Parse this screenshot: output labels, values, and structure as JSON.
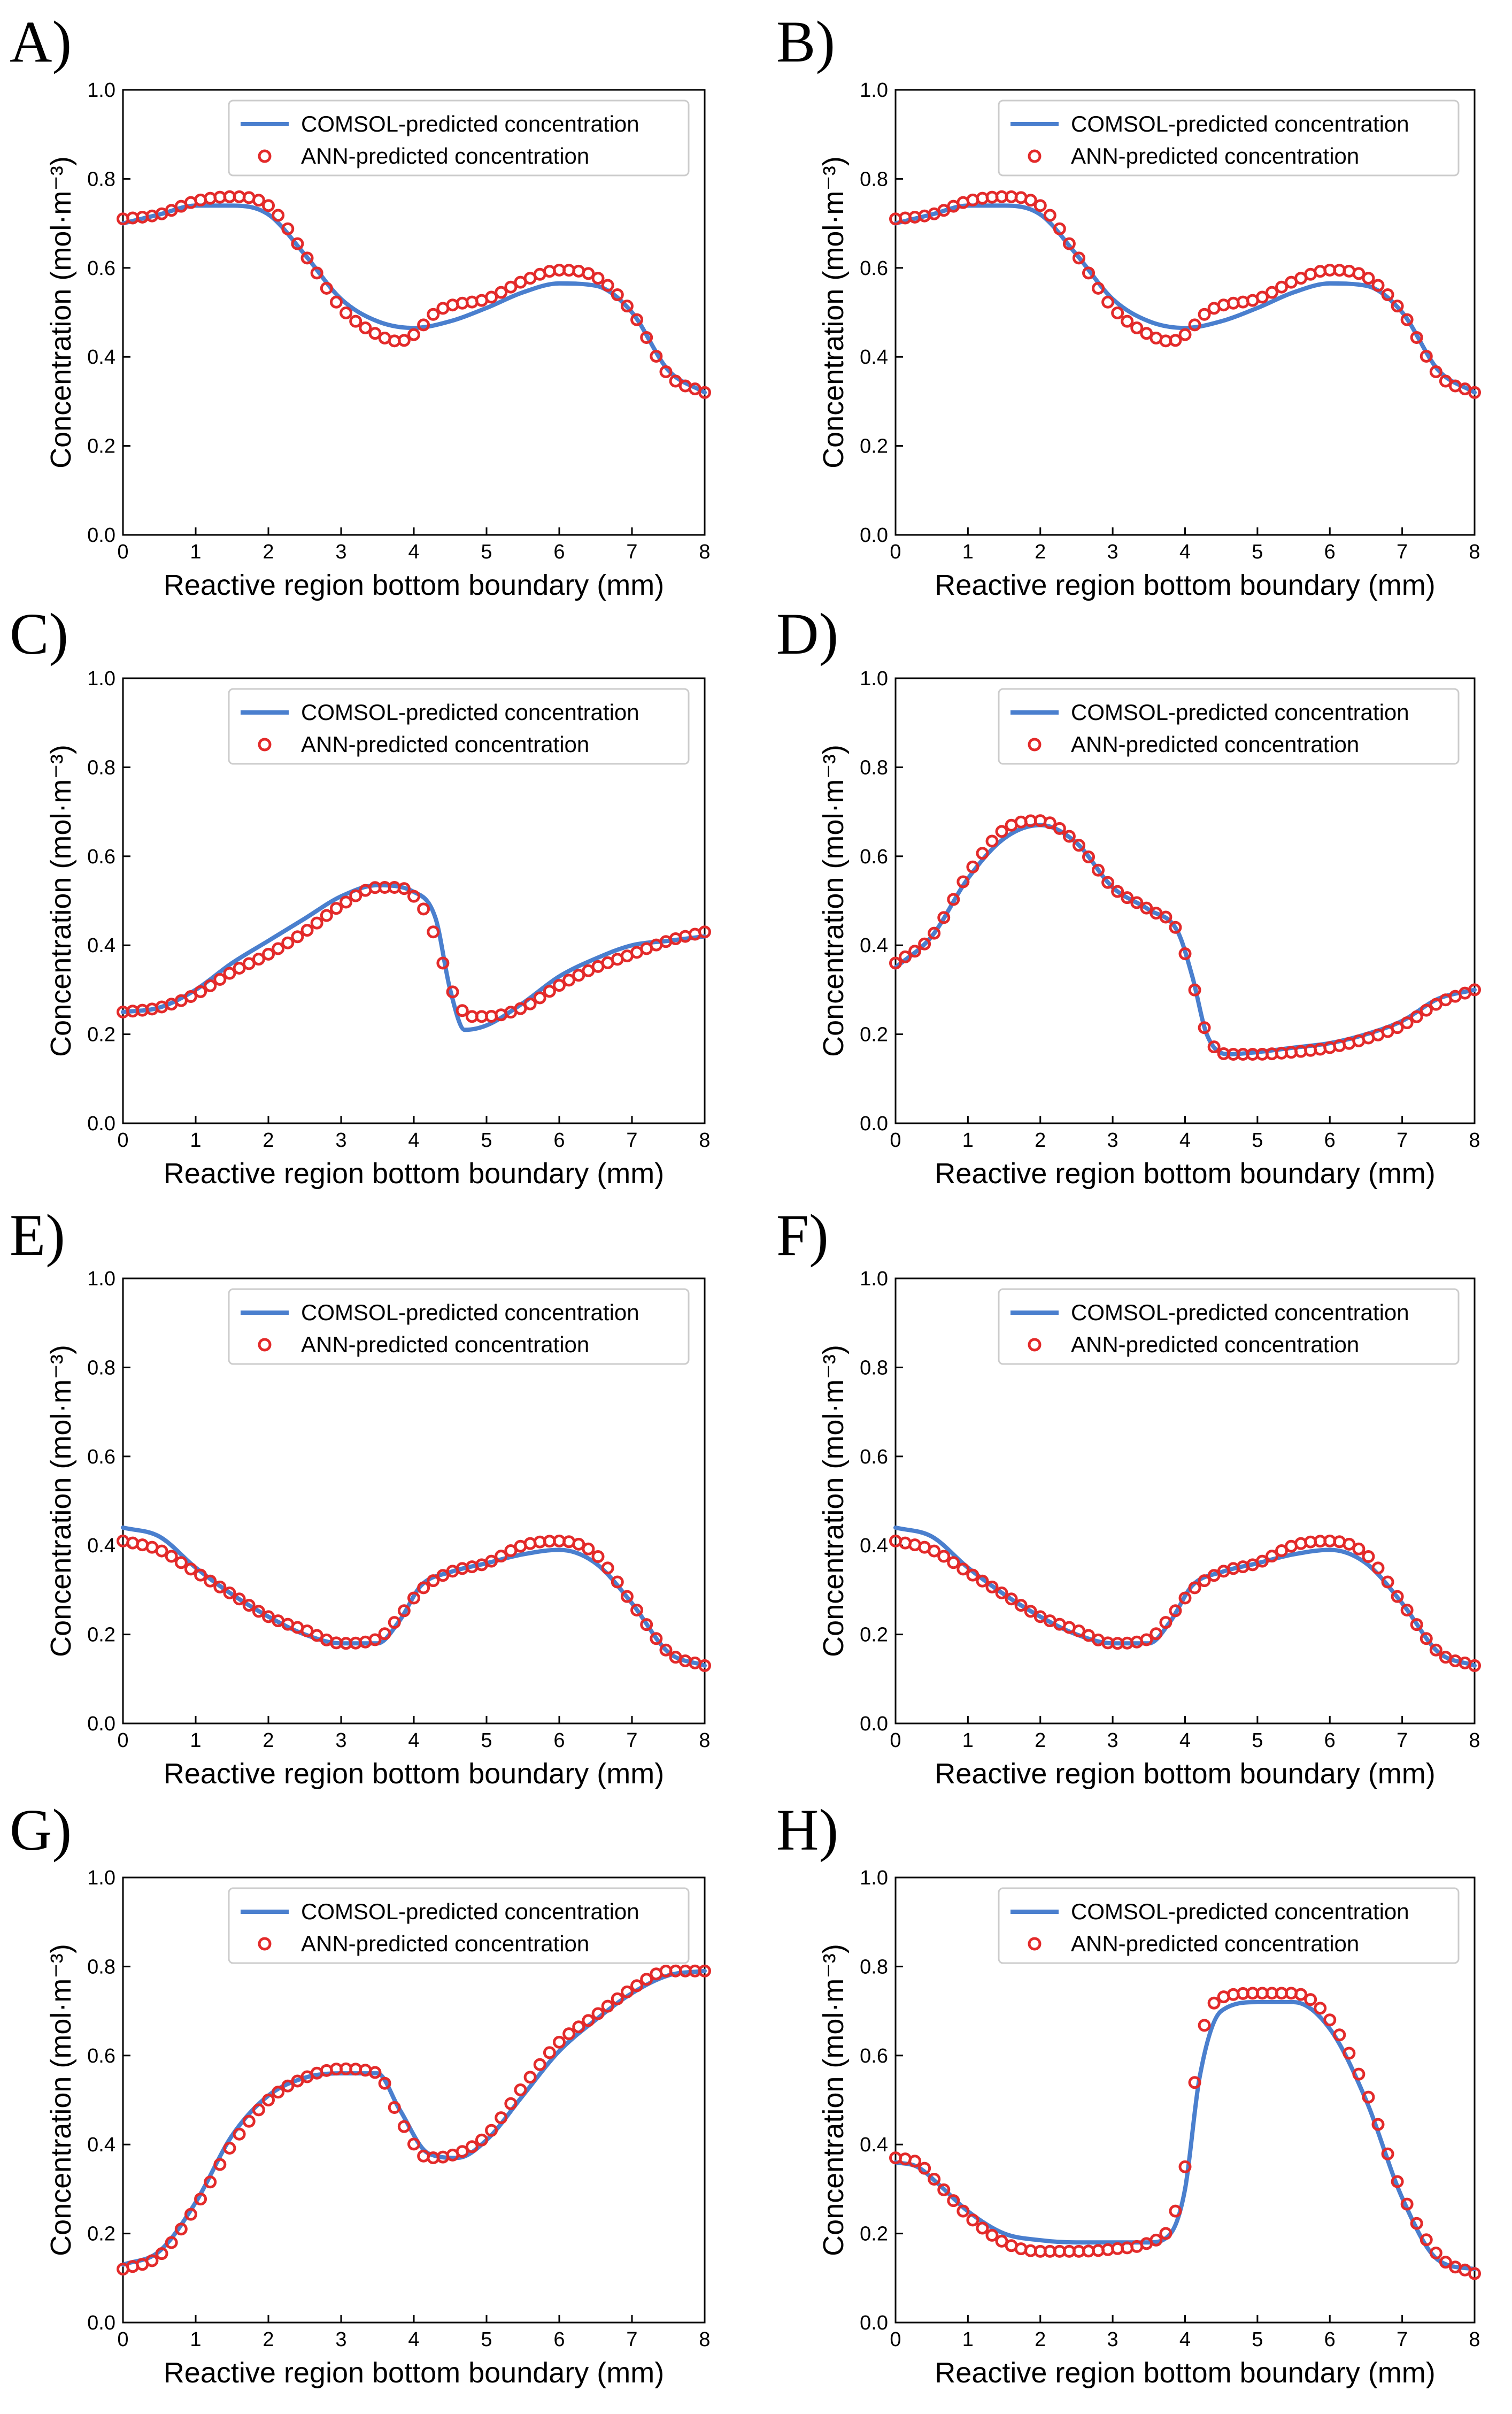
{
  "style": {
    "comsol_color": "#4A7FCE",
    "ann_color": "#E32A2A",
    "axis_color": "#000000",
    "legend_border": "#CCCCCC"
  },
  "chart_data": [
    {
      "panel": "A)",
      "type": "line",
      "xlabel": "Reactive region bottom boundary (mm)",
      "ylabel": "Concentration (mol·m⁻³)",
      "xlim": [
        0,
        8
      ],
      "ylim": [
        0,
        1
      ],
      "xticks": [
        "0",
        "1",
        "2",
        "3",
        "4",
        "5",
        "6",
        "7",
        "8"
      ],
      "yticks": [
        "0.0",
        "0.2",
        "0.4",
        "0.6",
        "0.8",
        "1.0"
      ],
      "legend": "top-right",
      "series": [
        {
          "name": "COMSOL-predicted concentration",
          "kind": "line",
          "x": [
            0,
            0.5,
            1.0,
            1.5,
            2.0,
            2.5,
            3.0,
            3.5,
            4.0,
            4.5,
            5.0,
            5.5,
            6.0,
            6.5,
            7.0,
            7.5,
            8.0
          ],
          "y": [
            0.7,
            0.72,
            0.74,
            0.74,
            0.72,
            0.63,
            0.53,
            0.48,
            0.465,
            0.48,
            0.51,
            0.545,
            0.565,
            0.56,
            0.5,
            0.37,
            0.32
          ]
        },
        {
          "name": "ANN-predicted concentration",
          "kind": "scatter",
          "x": [
            0,
            0.5,
            1.0,
            1.5,
            2.0,
            2.5,
            3.0,
            3.5,
            3.8,
            4.0,
            4.3,
            4.5,
            5.0,
            5.5,
            6.0,
            6.5,
            7.0,
            7.5,
            8.0
          ],
          "y": [
            0.71,
            0.72,
            0.75,
            0.76,
            0.74,
            0.63,
            0.51,
            0.45,
            0.435,
            0.45,
            0.5,
            0.515,
            0.53,
            0.57,
            0.595,
            0.58,
            0.5,
            0.36,
            0.32
          ]
        }
      ]
    },
    {
      "panel": "B)",
      "type": "line",
      "xlabel": "Reactive region bottom boundary (mm)",
      "ylabel": "Concentration (mol·m⁻³)",
      "xlim": [
        0,
        8
      ],
      "ylim": [
        0,
        1
      ],
      "xticks": [
        "0",
        "1",
        "2",
        "3",
        "4",
        "5",
        "6",
        "7",
        "8"
      ],
      "yticks": [
        "0.0",
        "0.2",
        "0.4",
        "0.6",
        "0.8",
        "1.0"
      ],
      "legend": "top-right",
      "series": [
        {
          "name": "COMSOL-predicted concentration",
          "kind": "line",
          "x": [
            0,
            0.5,
            1.0,
            1.5,
            2.0,
            2.5,
            3.0,
            3.5,
            4.0,
            4.5,
            5.0,
            5.5,
            6.0,
            6.5,
            7.0,
            7.5,
            8.0
          ],
          "y": [
            0.7,
            0.72,
            0.74,
            0.74,
            0.72,
            0.63,
            0.53,
            0.48,
            0.465,
            0.48,
            0.51,
            0.545,
            0.565,
            0.56,
            0.5,
            0.37,
            0.32
          ]
        },
        {
          "name": "ANN-predicted concentration",
          "kind": "scatter",
          "x": [
            0,
            0.5,
            1.0,
            1.5,
            2.0,
            2.5,
            3.0,
            3.5,
            3.8,
            4.0,
            4.3,
            4.5,
            5.0,
            5.5,
            6.0,
            6.5,
            7.0,
            7.5,
            8.0
          ],
          "y": [
            0.71,
            0.72,
            0.75,
            0.76,
            0.74,
            0.63,
            0.51,
            0.45,
            0.435,
            0.45,
            0.5,
            0.515,
            0.53,
            0.57,
            0.595,
            0.58,
            0.5,
            0.36,
            0.32
          ]
        }
      ]
    },
    {
      "panel": "C)",
      "type": "line",
      "xlabel": "Reactive region bottom boundary (mm)",
      "ylabel": "Concentration (mol·m⁻³)",
      "xlim": [
        0,
        8
      ],
      "ylim": [
        0,
        1
      ],
      "xticks": [
        "0",
        "1",
        "2",
        "3",
        "4",
        "5",
        "6",
        "7",
        "8"
      ],
      "yticks": [
        "0.0",
        "0.2",
        "0.4",
        "0.6",
        "0.8",
        "1.0"
      ],
      "legend": "top-right",
      "series": [
        {
          "name": "COMSOL-predicted concentration",
          "kind": "line",
          "x": [
            0,
            0.5,
            1.0,
            1.5,
            2.0,
            2.5,
            3.0,
            3.5,
            4.0,
            4.3,
            4.5,
            4.7,
            5.0,
            5.5,
            6.0,
            6.5,
            7.0,
            7.5,
            8.0
          ],
          "y": [
            0.25,
            0.26,
            0.3,
            0.36,
            0.41,
            0.46,
            0.51,
            0.535,
            0.52,
            0.46,
            0.3,
            0.21,
            0.22,
            0.27,
            0.33,
            0.37,
            0.4,
            0.41,
            0.42
          ]
        },
        {
          "name": "ANN-predicted concentration",
          "kind": "scatter",
          "x": [
            0,
            0.5,
            1.0,
            1.5,
            2.0,
            2.5,
            3.0,
            3.5,
            3.8,
            4.0,
            4.2,
            4.4,
            4.6,
            4.8,
            5.0,
            5.5,
            6.0,
            6.5,
            7.0,
            7.5,
            8.0
          ],
          "y": [
            0.25,
            0.26,
            0.29,
            0.34,
            0.38,
            0.43,
            0.49,
            0.53,
            0.53,
            0.51,
            0.46,
            0.36,
            0.27,
            0.24,
            0.24,
            0.26,
            0.31,
            0.35,
            0.38,
            0.41,
            0.43
          ]
        }
      ]
    },
    {
      "panel": "D)",
      "type": "line",
      "xlabel": "Reactive region bottom boundary (mm)",
      "ylabel": "Concentration (mol·m⁻³)",
      "xlim": [
        0,
        8
      ],
      "ylim": [
        0,
        1
      ],
      "xticks": [
        "0",
        "1",
        "2",
        "3",
        "4",
        "5",
        "6",
        "7",
        "8"
      ],
      "yticks": [
        "0.0",
        "0.2",
        "0.4",
        "0.6",
        "0.8",
        "1.0"
      ],
      "legend": "top-right",
      "series": [
        {
          "name": "COMSOL-predicted concentration",
          "kind": "line",
          "x": [
            0,
            0.5,
            1.0,
            1.5,
            2.0,
            2.5,
            3.0,
            3.5,
            3.9,
            4.1,
            4.3,
            4.6,
            5.0,
            5.5,
            6.0,
            6.5,
            7.0,
            7.5,
            8.0
          ],
          "y": [
            0.35,
            0.42,
            0.55,
            0.64,
            0.67,
            0.63,
            0.53,
            0.48,
            0.43,
            0.33,
            0.2,
            0.155,
            0.16,
            0.17,
            0.18,
            0.2,
            0.23,
            0.28,
            0.3
          ]
        },
        {
          "name": "ANN-predicted concentration",
          "kind": "scatter",
          "x": [
            0,
            0.5,
            1.0,
            1.5,
            2.0,
            2.5,
            3.0,
            3.5,
            3.9,
            4.1,
            4.3,
            4.6,
            5.0,
            5.5,
            6.0,
            6.5,
            7.0,
            7.5,
            8.0
          ],
          "y": [
            0.36,
            0.42,
            0.56,
            0.66,
            0.68,
            0.63,
            0.53,
            0.48,
            0.43,
            0.32,
            0.2,
            0.155,
            0.155,
            0.16,
            0.17,
            0.19,
            0.22,
            0.27,
            0.3
          ]
        }
      ]
    },
    {
      "panel": "E)",
      "type": "line",
      "xlabel": "Reactive region bottom boundary (mm)",
      "ylabel": "Concentration (mol·m⁻³)",
      "xlim": [
        0,
        8
      ],
      "ylim": [
        0,
        1
      ],
      "xticks": [
        "0",
        "1",
        "2",
        "3",
        "4",
        "5",
        "6",
        "7",
        "8"
      ],
      "yticks": [
        "0.0",
        "0.2",
        "0.4",
        "0.6",
        "0.8",
        "1.0"
      ],
      "legend": "top-right",
      "series": [
        {
          "name": "COMSOL-predicted concentration",
          "kind": "line",
          "x": [
            0,
            0.5,
            1.0,
            1.5,
            2.0,
            2.5,
            3.0,
            3.5,
            3.8,
            4.1,
            4.5,
            5.0,
            5.5,
            6.0,
            6.5,
            7.0,
            7.5,
            8.0
          ],
          "y": [
            0.44,
            0.42,
            0.35,
            0.29,
            0.24,
            0.2,
            0.18,
            0.18,
            0.23,
            0.31,
            0.34,
            0.36,
            0.38,
            0.39,
            0.36,
            0.27,
            0.16,
            0.13
          ]
        },
        {
          "name": "ANN-predicted concentration",
          "kind": "scatter",
          "x": [
            0,
            0.5,
            1.0,
            1.5,
            2.0,
            2.5,
            3.0,
            3.5,
            3.8,
            4.1,
            4.5,
            5.0,
            5.5,
            6.0,
            6.5,
            7.0,
            7.5,
            8.0
          ],
          "y": [
            0.41,
            0.39,
            0.34,
            0.29,
            0.24,
            0.21,
            0.18,
            0.19,
            0.24,
            0.3,
            0.34,
            0.36,
            0.4,
            0.41,
            0.38,
            0.27,
            0.16,
            0.13
          ]
        }
      ]
    },
    {
      "panel": "F)",
      "type": "line",
      "xlabel": "Reactive region bottom boundary (mm)",
      "ylabel": "Concentration (mol·m⁻³)",
      "xlim": [
        0,
        8
      ],
      "ylim": [
        0,
        1
      ],
      "xticks": [
        "0",
        "1",
        "2",
        "3",
        "4",
        "5",
        "6",
        "7",
        "8"
      ],
      "yticks": [
        "0.0",
        "0.2",
        "0.4",
        "0.6",
        "0.8",
        "1.0"
      ],
      "legend": "top-right",
      "series": [
        {
          "name": "COMSOL-predicted concentration",
          "kind": "line",
          "x": [
            0,
            0.5,
            1.0,
            1.5,
            2.0,
            2.5,
            3.0,
            3.5,
            3.8,
            4.1,
            4.5,
            5.0,
            5.5,
            6.0,
            6.5,
            7.0,
            7.5,
            8.0
          ],
          "y": [
            0.44,
            0.42,
            0.35,
            0.29,
            0.24,
            0.2,
            0.18,
            0.18,
            0.23,
            0.31,
            0.34,
            0.36,
            0.38,
            0.39,
            0.36,
            0.27,
            0.16,
            0.13
          ]
        },
        {
          "name": "ANN-predicted concentration",
          "kind": "scatter",
          "x": [
            0,
            0.5,
            1.0,
            1.5,
            2.0,
            2.5,
            3.0,
            3.5,
            3.8,
            4.1,
            4.5,
            5.0,
            5.5,
            6.0,
            6.5,
            7.0,
            7.5,
            8.0
          ],
          "y": [
            0.41,
            0.39,
            0.34,
            0.29,
            0.24,
            0.21,
            0.18,
            0.19,
            0.24,
            0.3,
            0.34,
            0.36,
            0.4,
            0.41,
            0.38,
            0.27,
            0.16,
            0.13
          ]
        }
      ]
    },
    {
      "panel": "G)",
      "type": "line",
      "xlabel": "Reactive region bottom boundary (mm)",
      "ylabel": "Concentration (mol·m⁻³)",
      "xlim": [
        0,
        8
      ],
      "ylim": [
        0,
        1
      ],
      "xticks": [
        "0",
        "1",
        "2",
        "3",
        "4",
        "5",
        "6",
        "7",
        "8"
      ],
      "yticks": [
        "0.0",
        "0.2",
        "0.4",
        "0.6",
        "0.8",
        "1.0"
      ],
      "legend": "top-right",
      "series": [
        {
          "name": "COMSOL-predicted concentration",
          "kind": "line",
          "x": [
            0,
            0.5,
            1.0,
            1.5,
            2.0,
            2.5,
            3.0,
            3.5,
            3.8,
            4.2,
            4.6,
            5.0,
            5.5,
            6.0,
            6.5,
            7.0,
            7.5,
            8.0
          ],
          "y": [
            0.13,
            0.16,
            0.27,
            0.42,
            0.51,
            0.55,
            0.56,
            0.56,
            0.48,
            0.38,
            0.37,
            0.41,
            0.51,
            0.61,
            0.68,
            0.74,
            0.78,
            0.79
          ]
        },
        {
          "name": "ANN-predicted concentration",
          "kind": "scatter",
          "x": [
            0,
            0.5,
            1.0,
            1.5,
            2.0,
            2.5,
            3.0,
            3.5,
            3.8,
            4.2,
            4.6,
            5.0,
            5.5,
            6.0,
            6.5,
            7.0,
            7.5,
            8.0
          ],
          "y": [
            0.12,
            0.15,
            0.26,
            0.4,
            0.5,
            0.55,
            0.57,
            0.56,
            0.46,
            0.37,
            0.38,
            0.42,
            0.53,
            0.63,
            0.69,
            0.75,
            0.79,
            0.79
          ]
        }
      ]
    },
    {
      "panel": "H)",
      "type": "line",
      "xlabel": "Reactive region bottom boundary (mm)",
      "ylabel": "Concentration (mol·m⁻³)",
      "xlim": [
        0,
        8
      ],
      "ylim": [
        0,
        1
      ],
      "xticks": [
        "0",
        "1",
        "2",
        "3",
        "4",
        "5",
        "6",
        "7",
        "8"
      ],
      "yticks": [
        "0.0",
        "0.2",
        "0.4",
        "0.6",
        "0.8",
        "1.0"
      ],
      "legend": "top-right",
      "series": [
        {
          "name": "COMSOL-predicted concentration",
          "kind": "line",
          "x": [
            0,
            0.3,
            0.6,
            1.0,
            1.5,
            2.0,
            2.5,
            3.0,
            3.5,
            3.8,
            4.0,
            4.2,
            4.5,
            5.0,
            5.5,
            6.0,
            6.5,
            7.0,
            7.5,
            8.0
          ],
          "y": [
            0.36,
            0.35,
            0.31,
            0.25,
            0.2,
            0.185,
            0.18,
            0.18,
            0.18,
            0.2,
            0.3,
            0.55,
            0.7,
            0.72,
            0.72,
            0.66,
            0.5,
            0.28,
            0.14,
            0.12
          ]
        },
        {
          "name": "ANN-predicted concentration",
          "kind": "scatter",
          "x": [
            0,
            0.3,
            0.6,
            1.0,
            1.5,
            2.0,
            2.5,
            3.0,
            3.5,
            3.8,
            4.0,
            4.2,
            4.5,
            5.0,
            5.5,
            6.0,
            6.5,
            7.0,
            7.5,
            8.0
          ],
          "y": [
            0.37,
            0.36,
            0.31,
            0.24,
            0.18,
            0.16,
            0.16,
            0.165,
            0.18,
            0.22,
            0.35,
            0.62,
            0.73,
            0.74,
            0.74,
            0.68,
            0.52,
            0.29,
            0.15,
            0.11
          ]
        }
      ]
    }
  ]
}
